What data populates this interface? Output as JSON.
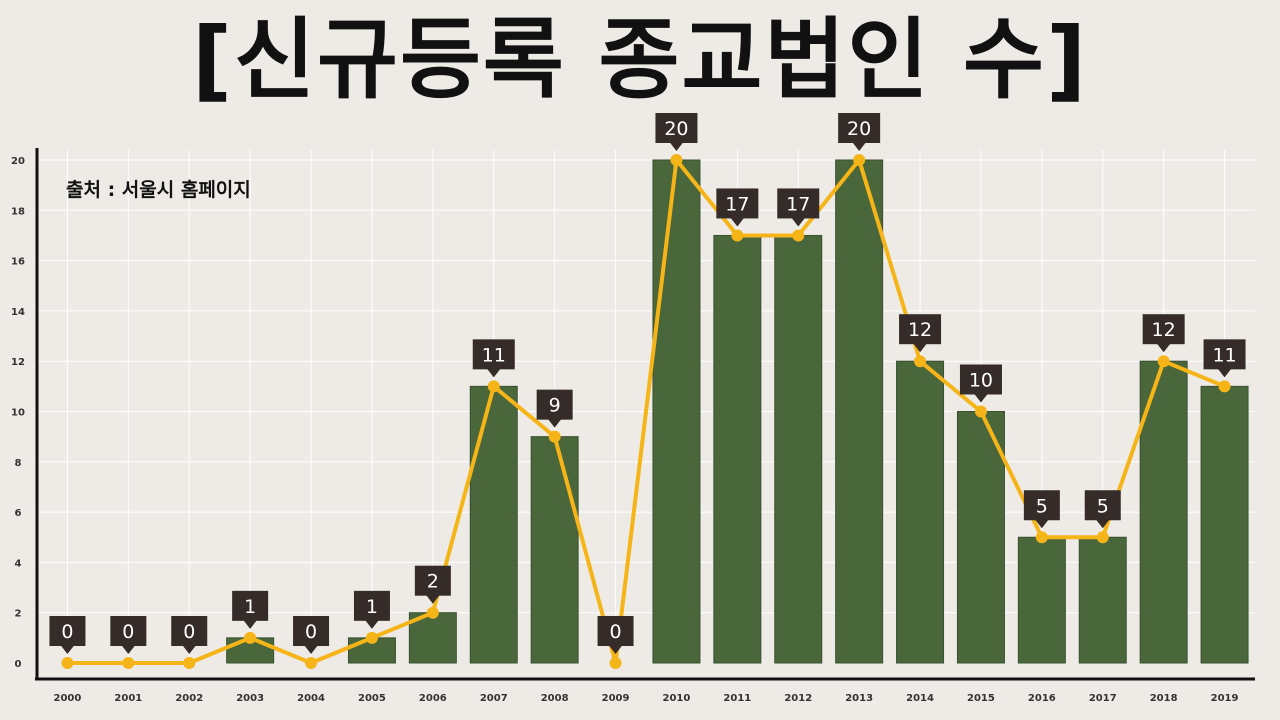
{
  "chart_data": {
    "type": "bar",
    "title": "[신규등록 종교법인 수]",
    "source": "출처 : 서울시 홈페이지",
    "categories": [
      "2000",
      "2001",
      "2002",
      "2003",
      "2004",
      "2005",
      "2006",
      "2007",
      "2008",
      "2009",
      "2010",
      "2011",
      "2012",
      "2013",
      "2014",
      "2015",
      "2016",
      "2017",
      "2018",
      "2019"
    ],
    "values": [
      0,
      0,
      0,
      1,
      0,
      1,
      2,
      11,
      9,
      0,
      20,
      17,
      17,
      20,
      12,
      10,
      5,
      5,
      12,
      11
    ],
    "overlay": "line",
    "ylim": [
      0,
      20
    ],
    "yticks": [
      0,
      2,
      4,
      6,
      8,
      10,
      12,
      14,
      16,
      18,
      20
    ],
    "grid": true,
    "legend": "none",
    "colors": {
      "bar": "#4a663b",
      "line": "#f5b417",
      "callout": "#352b28",
      "background": "#eeebe7"
    }
  }
}
